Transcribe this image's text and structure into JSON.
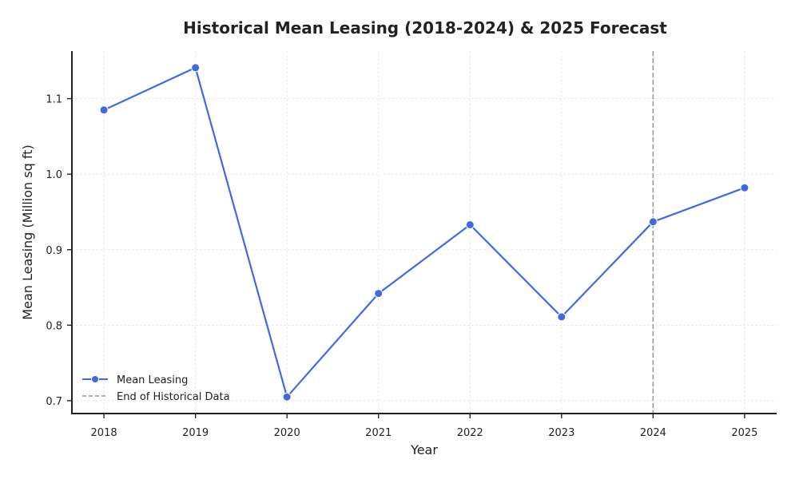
{
  "chart_data": {
    "type": "line",
    "title": "Historical Mean Leasing (2018-2024) & 2025 Forecast",
    "xlabel": "Year",
    "ylabel": "Mean Leasing (Million sq ft)",
    "x": [
      2018,
      2019,
      2020,
      2021,
      2022,
      2023,
      2024,
      2025
    ],
    "x_tick_labels": [
      "2018",
      "2019",
      "2020",
      "2021",
      "2022",
      "2023",
      "2024",
      "2025"
    ],
    "y_ticks": [
      0.7,
      0.8,
      0.9,
      1.0,
      1.1
    ],
    "y_tick_labels": [
      "0.7",
      "0.8",
      "0.9",
      "1.0",
      "1.1"
    ],
    "xlim": [
      2017.65,
      2025.35
    ],
    "ylim": [
      0.683,
      1.163
    ],
    "grid": true,
    "legend_position": "lower-left",
    "series": [
      {
        "name": "Mean Leasing",
        "color": "#4169E1",
        "marker": "circle",
        "values": [
          1.085,
          1.141,
          0.705,
          0.842,
          0.933,
          0.811,
          0.937,
          0.982
        ]
      }
    ],
    "reference_lines": [
      {
        "name": "End of Historical Data",
        "axis": "x",
        "value": 2024,
        "color": "#999999",
        "style": "dashed"
      }
    ]
  }
}
